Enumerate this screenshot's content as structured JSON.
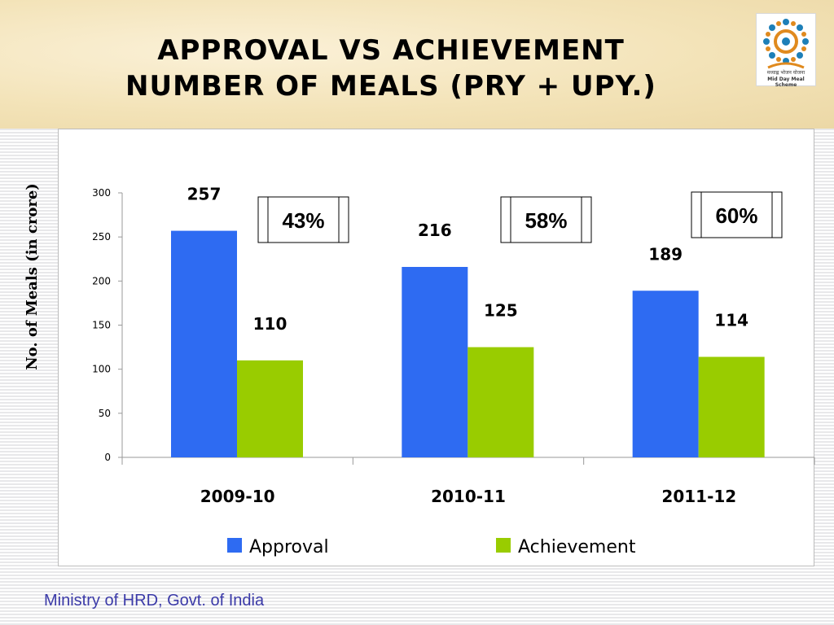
{
  "title": {
    "line1": "APPROVAL  VS  ACHIEVEMENT",
    "line2": "NUMBER  OF   MEALS (PRY + UPY.)"
  },
  "logo": {
    "caption_hindi": "मध्याह्न भोजन योजना",
    "caption_english": "Mid Day Meal Scheme"
  },
  "footer": "Ministry of HRD, Govt. of India",
  "colors": {
    "approval": "#2e6bf2",
    "achievement": "#99cc00",
    "footer_text": "#3b3aa8"
  },
  "chart_data": {
    "type": "bar",
    "title": "",
    "xlabel": "",
    "ylabel": "No. of Meals (in crore)",
    "ylim": [
      0,
      300
    ],
    "yticks": [
      0,
      50,
      100,
      150,
      200,
      250,
      300
    ],
    "categories": [
      "2009-10",
      "2010-11",
      "2011-12"
    ],
    "series": [
      {
        "name": "Approval",
        "values": [
          257,
          216,
          189
        ],
        "labels": [
          "257",
          "216",
          "189"
        ]
      },
      {
        "name": "Achievement",
        "values": [
          110,
          125,
          114
        ],
        "labels": [
          "110",
          "125",
          "114"
        ]
      }
    ],
    "annotations": [
      "43%",
      "58%",
      "60%"
    ],
    "legend": "bottom",
    "grid": false
  }
}
